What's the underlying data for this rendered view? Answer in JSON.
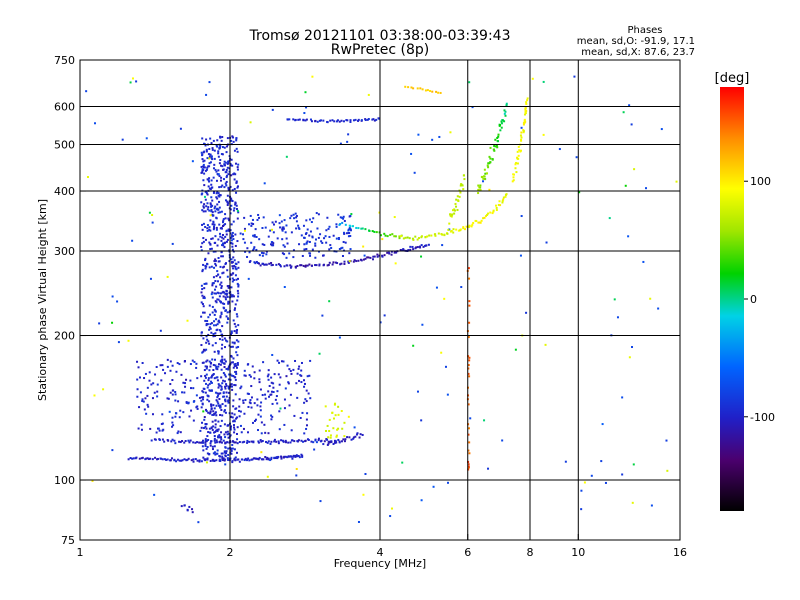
{
  "chart_data": {
    "type": "scatter",
    "title": "Tromsø 20121101 03:38:00-03:39:43",
    "subtitle": "RwPretec (8p)",
    "xlabel": "Frequency [MHz]",
    "ylabel": "Stationary phase Virtual Height [km]",
    "x_scale": "log2",
    "y_scale": "log",
    "xlim": [
      1,
      16
    ],
    "ylim": [
      75,
      750
    ],
    "x_ticks": [
      1,
      2,
      4,
      6,
      8,
      10,
      16
    ],
    "x_tick_labels": [
      "1",
      "2",
      "4",
      "6",
      "8",
      "10",
      "16"
    ],
    "x_grid": [
      2,
      4,
      6,
      8,
      10
    ],
    "y_ticks": [
      75,
      100,
      200,
      300,
      400,
      500,
      600,
      750
    ],
    "y_tick_labels": [
      "75",
      "100",
      "200",
      "300",
      "400",
      "500",
      "600",
      "750"
    ],
    "y_grid": [
      100,
      200,
      300,
      400,
      500,
      600
    ],
    "grid": true,
    "legend": {
      "title": "Phases",
      "lines": [
        "mean, sd,O: -91.9, 17.1",
        "mean, sd,X: 87.6, 23.7"
      ]
    },
    "colorbar": {
      "label": "[deg]",
      "range": [
        -180,
        180
      ],
      "ticks": [
        100,
        0,
        -100
      ],
      "tick_labels": [
        "100",
        "0",
        "-100"
      ],
      "colormap": "rainbow (black-purple-blue-cyan-green-yellow-red)"
    },
    "series": [
      {
        "mode": "O",
        "mean_phase_deg": -91.9,
        "traces": [
          {
            "kind": "curve",
            "x": [
              2.2,
              2.4,
              2.7,
              3.0,
              3.4,
              3.8,
              4.2,
              4.6,
              5.0
            ],
            "y": [
              285,
              281,
              279,
              280,
              284,
              290,
              297,
              303,
              310
            ],
            "phase": [
              -100,
              -110,
              -115,
              -118,
              -120,
              -118,
              -115,
              -110,
              -105
            ],
            "n": 110,
            "spread": 4
          },
          {
            "kind": "cloud",
            "x": [
              1.75,
              2.08
            ],
            "y": [
              110,
              520
            ],
            "phase": -100,
            "n": 900
          },
          {
            "kind": "cloud",
            "x": [
              2.1,
              3.5
            ],
            "y": [
              290,
              360
            ],
            "phase": -95,
            "n": 180
          },
          {
            "kind": "curve",
            "x": [
              1.25,
              1.6,
              2.0,
              2.4,
              2.8
            ],
            "y": [
              111,
              110,
              110,
              111,
              112
            ],
            "phase": -105,
            "n": 130,
            "spread": 1.2
          },
          {
            "kind": "curve",
            "x": [
              1.4,
              1.7,
              2.0,
              2.4,
              2.8,
              3.3
            ],
            "y": [
              121,
              120,
              120,
              120,
              121,
              121
            ],
            "phase": -105,
            "n": 110,
            "spread": 1.5
          },
          {
            "kind": "cloud",
            "x": [
              1.3,
              2.9
            ],
            "y": [
              125,
              178
            ],
            "phase": -102,
            "n": 320
          },
          {
            "kind": "curve",
            "x": [
              2.6,
              3.0,
              3.5,
              4.0
            ],
            "y": [
              565,
              560,
              560,
              565
            ],
            "phase": -100,
            "n": 50,
            "spread": 5
          },
          {
            "kind": "curve",
            "x": [
              3.1,
              3.3,
              3.5,
              3.7
            ],
            "y": [
              118,
              120,
              122,
              125
            ],
            "phase": -110,
            "n": 25,
            "spread": 2
          },
          {
            "kind": "cloud",
            "x": [
              1.02,
              16.0
            ],
            "y": [
              80,
              700
            ],
            "phase": -80,
            "n": 110
          },
          {
            "kind": "cloud",
            "x": [
              1.6,
              1.7
            ],
            "y": [
              85,
              90
            ],
            "phase": -110,
            "n": 8
          }
        ]
      },
      {
        "mode": "X",
        "mean_phase_deg": 87.6,
        "traces": [
          {
            "kind": "curve",
            "x": [
              3.3,
              3.8,
              4.3,
              4.8,
              5.3,
              5.8,
              6.3,
              6.8,
              7.2
            ],
            "y": [
              342,
              330,
              322,
              320,
              325,
              333,
              345,
              365,
              395
            ],
            "phase": [
              -40,
              10,
              50,
              70,
              80,
              90,
              95,
              90,
              85
            ],
            "n": 100,
            "spread": 5
          },
          {
            "kind": "curve",
            "x": [
              6.3,
              6.6,
              6.9,
              7.2
            ],
            "y": [
              400,
              450,
              520,
              600
            ],
            "phase": [
              60,
              40,
              20,
              0
            ],
            "n": 60,
            "spread": 25
          },
          {
            "kind": "curve",
            "x": [
              7.4,
              7.6,
              7.8,
              7.9
            ],
            "y": [
              420,
              480,
              550,
              620
            ],
            "phase": 95,
            "n": 45,
            "spread": 15
          },
          {
            "kind": "curve",
            "x": [
              5.5,
              5.9
            ],
            "y": [
              340,
              420
            ],
            "phase": 70,
            "n": 30,
            "spread": 20
          },
          {
            "kind": "cloud",
            "x": [
              3.1,
              3.4
            ],
            "y": [
              122,
              145
            ],
            "phase": 80,
            "n": 25
          },
          {
            "kind": "curve",
            "x": [
              4.5,
              4.9,
              5.3
            ],
            "y": [
              660,
              650,
              640
            ],
            "phase": 110,
            "n": 14,
            "spread": 5
          },
          {
            "kind": "cloud",
            "x": [
              6.0,
              6.05
            ],
            "y": [
              105,
              280
            ],
            "phase": 150,
            "n": 30
          },
          {
            "kind": "cloud",
            "x": [
              1.02,
              16.0
            ],
            "y": [
              80,
              700
            ],
            "phase": 90,
            "n": 45
          },
          {
            "kind": "cloud",
            "x": [
              1.02,
              16.0
            ],
            "y": [
              80,
              700
            ],
            "phase": 10,
            "n": 25
          }
        ]
      }
    ]
  }
}
